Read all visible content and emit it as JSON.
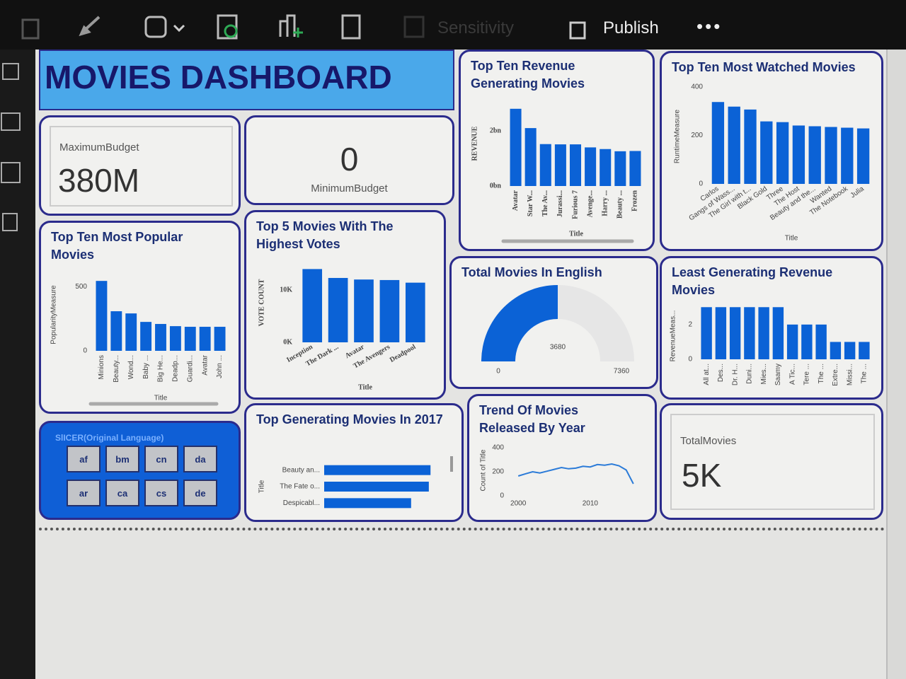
{
  "toolbar": {
    "items": [
      "Sensitivity",
      "Publish"
    ]
  },
  "header": {
    "title": "MOVIES DASHBOARD"
  },
  "cards": [
    {
      "label": "MaximumBudget",
      "value": "380M"
    },
    {
      "label": "MinimumBudget",
      "value": "0"
    },
    {
      "label": "TotalMovies",
      "value": "5K"
    }
  ],
  "slicer": {
    "title": "SlICER(Original Language)",
    "options": [
      "af",
      "bm",
      "cn",
      "da",
      "ar",
      "ca",
      "cs",
      "de"
    ]
  },
  "chart_data": [
    {
      "type": "bar",
      "title": "Top Ten Revenue Generating Movies",
      "x_label": "Title",
      "y_label": "REVENUE",
      "categories": [
        "Avatar",
        "Star W...",
        "The Av...",
        "Jurassi...",
        "Furious 7",
        "Avenge...",
        "Harry ...",
        "Beauty ...",
        "Frozen"
      ],
      "values": [
        2.8,
        2.1,
        1.52,
        1.51,
        1.51,
        1.4,
        1.34,
        1.26,
        1.27
      ],
      "color": "#0b62d6",
      "ylim": [
        0,
        3
      ],
      "yticks": [
        {
          "value": 0,
          "label": "0bn"
        },
        {
          "value": 2,
          "label": "2bn"
        }
      ]
    },
    {
      "type": "bar",
      "title": "Top Ten Most Watched Movies",
      "x_label": "Title",
      "y_label": "RuntimeMeasure",
      "categories": [
        "Carlos",
        "Gangs of Wass...",
        "The Girl with t...",
        "Black Gold",
        "Three",
        "The Host",
        "Beauty and the...",
        "Wanted",
        "The Notebook",
        "Julia"
      ],
      "values": [
        338,
        319,
        307,
        258,
        255,
        241,
        238,
        235,
        232,
        229
      ],
      "color": "#0b62d6",
      "ylim": [
        0,
        400
      ],
      "yticks": [
        0,
        200,
        400
      ]
    },
    {
      "type": "bar",
      "title": "Top Ten Most Popular Movies",
      "x_label": "Title",
      "y_label": "PopularityMeasure",
      "categories": [
        "Minions",
        "Beauty...",
        "Wond...",
        "Baby ...",
        "Big He...",
        "Deadp...",
        "Guardi...",
        "Avatar",
        "John ..."
      ],
      "values": [
        544,
        308,
        291,
        225,
        209,
        192,
        187,
        187,
        187
      ],
      "color": "#0b62d6",
      "ylim": [
        0,
        600
      ],
      "yticks": [
        0,
        500
      ]
    },
    {
      "type": "bar",
      "title": "Top 5 Movies With The Highest Votes",
      "x_label": "Title",
      "y_label": "VOTE COUNT",
      "categories": [
        "Inception",
        "The Dark ...",
        "Avatar",
        "The Avengers",
        "Deadpool"
      ],
      "values": [
        14000,
        12300,
        12000,
        11900,
        11400
      ],
      "color": "#0b62d6",
      "ylim": [
        0,
        15000
      ],
      "yticks": [
        {
          "value": 0,
          "label": "0K"
        },
        {
          "value": 10000,
          "label": "10K"
        }
      ]
    },
    {
      "type": "gauge",
      "title": "Total Movies In English",
      "value": 3680,
      "min": 0,
      "max": 7360,
      "color": "#0b62d6",
      "track_color": "#e6e6e6"
    },
    {
      "type": "bar",
      "title": "Least Generating Revenue Movies",
      "y_label": "RevenueMeas...",
      "categories": [
        "All at...",
        "Des...",
        "Dr. H...",
        "Duni...",
        "Mies...",
        "Saamy",
        "A Tic...",
        "Tere ...",
        "The ...",
        "Extre...",
        "Missi...",
        "The ..."
      ],
      "values": [
        3,
        3,
        3,
        3,
        3,
        3,
        2,
        2,
        2,
        1,
        1,
        1
      ],
      "color": "#0b62d6",
      "ylim": [
        0,
        3.5
      ],
      "yticks": [
        0,
        2
      ]
    },
    {
      "type": "hbar",
      "title": "Top Generating Movies In 2017",
      "y_label": "Title",
      "categories": [
        "Beauty an...",
        "The Fate o...",
        "Despicabl..."
      ],
      "values": [
        1.26,
        1.24,
        1.03
      ],
      "color": "#0b62d6",
      "xlim": [
        0,
        1.3
      ]
    },
    {
      "type": "line",
      "title": "Trend Of Movies Released By Year",
      "y_label": "Count of Title",
      "x": [
        2000,
        2001,
        2002,
        2003,
        2004,
        2005,
        2006,
        2007,
        2008,
        2009,
        2010,
        2011,
        2012,
        2013,
        2014,
        2015,
        2016
      ],
      "values": [
        165,
        183,
        200,
        190,
        205,
        220,
        235,
        225,
        230,
        245,
        240,
        260,
        255,
        265,
        250,
        215,
        100
      ],
      "color": "#2b7bd8",
      "xlim": [
        1999,
        2017
      ],
      "xticks": [
        2000,
        2010
      ],
      "ylim": [
        0,
        400
      ],
      "yticks": [
        0,
        200,
        400
      ]
    }
  ]
}
